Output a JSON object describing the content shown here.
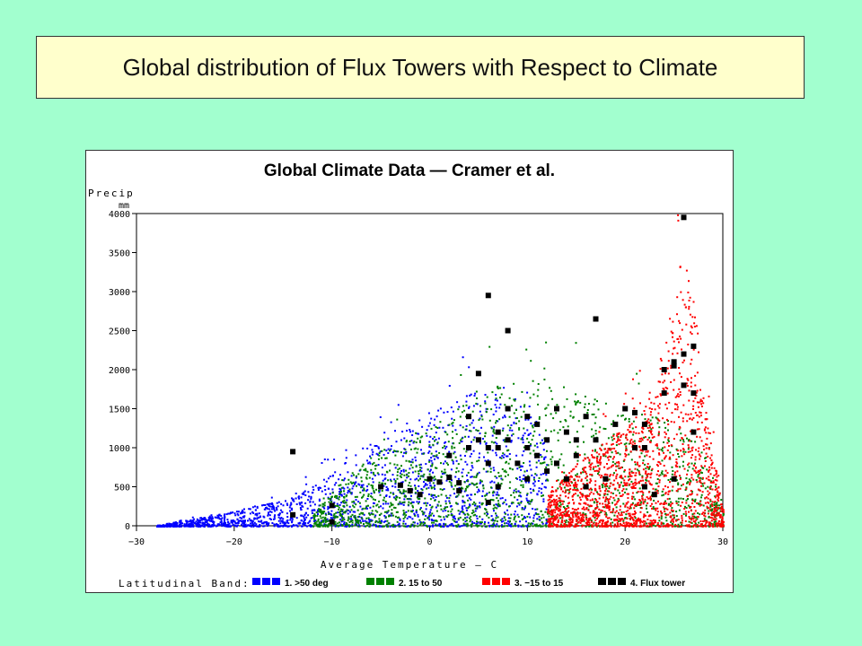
{
  "slide": {
    "title": "Global distribution of Flux Towers with Respect to Climate"
  },
  "chart_data": {
    "type": "scatter",
    "title": "Global Climate Data — Cramer et al.",
    "xlabel": "Average Temperature – C",
    "ylabel": [
      "Precip",
      "mm"
    ],
    "xlim": [
      -30,
      30
    ],
    "ylim": [
      0,
      4000
    ],
    "xticks": [
      -30,
      -20,
      -10,
      0,
      10,
      20,
      30
    ],
    "yticks": [
      0,
      500,
      1000,
      1500,
      2000,
      2500,
      3000,
      3500,
      4000
    ],
    "grid": false,
    "legend": {
      "title": "Latitudinal Band:",
      "placement": "bottom"
    },
    "series": [
      {
        "name": "1. >50 deg",
        "color": "#0000ff",
        "envelope": [
          [
            -28,
            15
          ],
          [
            -25,
            80
          ],
          [
            -20,
            200
          ],
          [
            -15,
            350
          ],
          [
            -10,
            700
          ],
          [
            -7,
            1000
          ],
          [
            -3,
            1300
          ],
          [
            0,
            1500
          ],
          [
            4,
            1700
          ],
          [
            8,
            1800
          ],
          [
            10,
            1600
          ],
          [
            12,
            1200
          ]
        ]
      },
      {
        "name": "2. 15 to 50",
        "color": "#008000",
        "envelope": [
          [
            -12,
            150
          ],
          [
            -9,
            600
          ],
          [
            -5,
            1000
          ],
          [
            0,
            1300
          ],
          [
            5,
            1700
          ],
          [
            8,
            1900
          ],
          [
            12,
            1900
          ],
          [
            16,
            1700
          ],
          [
            20,
            1500
          ],
          [
            24,
            1400
          ],
          [
            28,
            1000
          ],
          [
            30,
            200
          ]
        ]
      },
      {
        "name": "3. −15 to 15",
        "color": "#ff0000",
        "envelope": [
          [
            12,
            400
          ],
          [
            15,
            800
          ],
          [
            18,
            1100
          ],
          [
            20,
            1300
          ],
          [
            22,
            1700
          ],
          [
            24,
            2300
          ],
          [
            25,
            3100
          ],
          [
            26,
            3600
          ],
          [
            27,
            2900
          ],
          [
            28,
            1700
          ],
          [
            29,
            900
          ],
          [
            30,
            200
          ]
        ]
      },
      {
        "name": "4. Flux tower",
        "color": "#000000",
        "points": [
          [
            -14,
            950
          ],
          [
            -14,
            140
          ],
          [
            -10,
            50
          ],
          [
            -10,
            260
          ],
          [
            -5,
            500
          ],
          [
            -3,
            520
          ],
          [
            -2,
            450
          ],
          [
            -1,
            400
          ],
          [
            0,
            600
          ],
          [
            1,
            560
          ],
          [
            2,
            620
          ],
          [
            2,
            900
          ],
          [
            3,
            550
          ],
          [
            3,
            450
          ],
          [
            4,
            1000
          ],
          [
            4,
            1400
          ],
          [
            5,
            1100
          ],
          [
            5,
            1950
          ],
          [
            6,
            2950
          ],
          [
            6,
            1000
          ],
          [
            6,
            800
          ],
          [
            6,
            300
          ],
          [
            7,
            1200
          ],
          [
            7,
            1000
          ],
          [
            7,
            500
          ],
          [
            8,
            1500
          ],
          [
            8,
            2500
          ],
          [
            8,
            1100
          ],
          [
            9,
            800
          ],
          [
            10,
            1400
          ],
          [
            10,
            1000
          ],
          [
            10,
            600
          ],
          [
            11,
            1300
          ],
          [
            11,
            900
          ],
          [
            12,
            700
          ],
          [
            12,
            1100
          ],
          [
            13,
            1500
          ],
          [
            13,
            800
          ],
          [
            14,
            1200
          ],
          [
            14,
            600
          ],
          [
            15,
            1100
          ],
          [
            15,
            900
          ],
          [
            16,
            500
          ],
          [
            16,
            1400
          ],
          [
            17,
            2650
          ],
          [
            17,
            1100
          ],
          [
            18,
            600
          ],
          [
            19,
            1300
          ],
          [
            20,
            1500
          ],
          [
            21,
            1450
          ],
          [
            21,
            1000
          ],
          [
            22,
            1000
          ],
          [
            22,
            500
          ],
          [
            22,
            1300
          ],
          [
            23,
            400
          ],
          [
            24,
            1700
          ],
          [
            24,
            2000
          ],
          [
            25,
            2050
          ],
          [
            25,
            2100
          ],
          [
            25,
            600
          ],
          [
            26,
            3950
          ],
          [
            26,
            2200
          ],
          [
            26,
            1800
          ],
          [
            27,
            2300
          ],
          [
            27,
            1700
          ],
          [
            27,
            1200
          ]
        ]
      }
    ]
  }
}
